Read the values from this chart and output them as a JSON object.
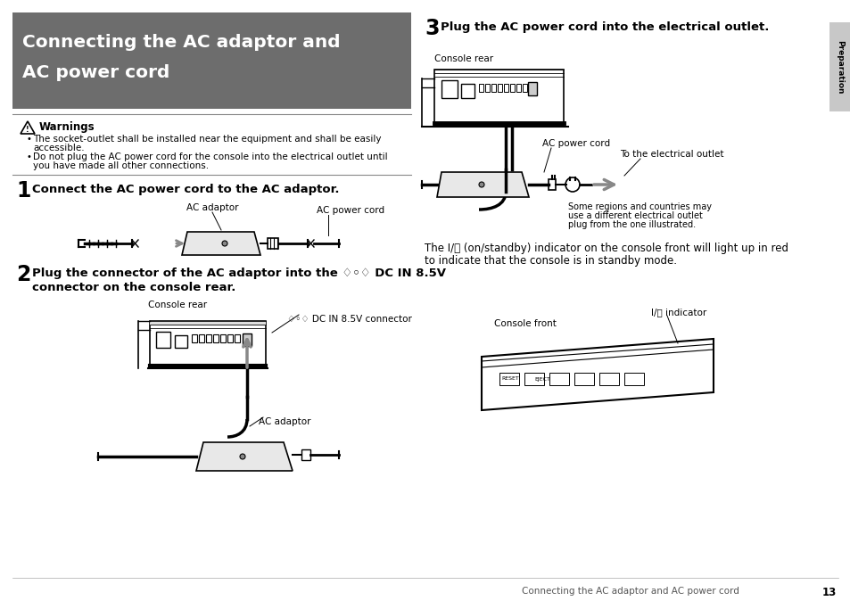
{
  "bg_color": "#ffffff",
  "page_width": 9.54,
  "page_height": 6.74,
  "header_bg": "#6d6d6d",
  "header_text_color": "#ffffff",
  "tab_bg": "#c8c8c8",
  "footer_text": "Connecting the AC adaptor and AC power cord",
  "footer_page": "13",
  "preparation_label": "Preparation",
  "warning_title": "Warnings",
  "step2_symbol": "♢◦♢"
}
